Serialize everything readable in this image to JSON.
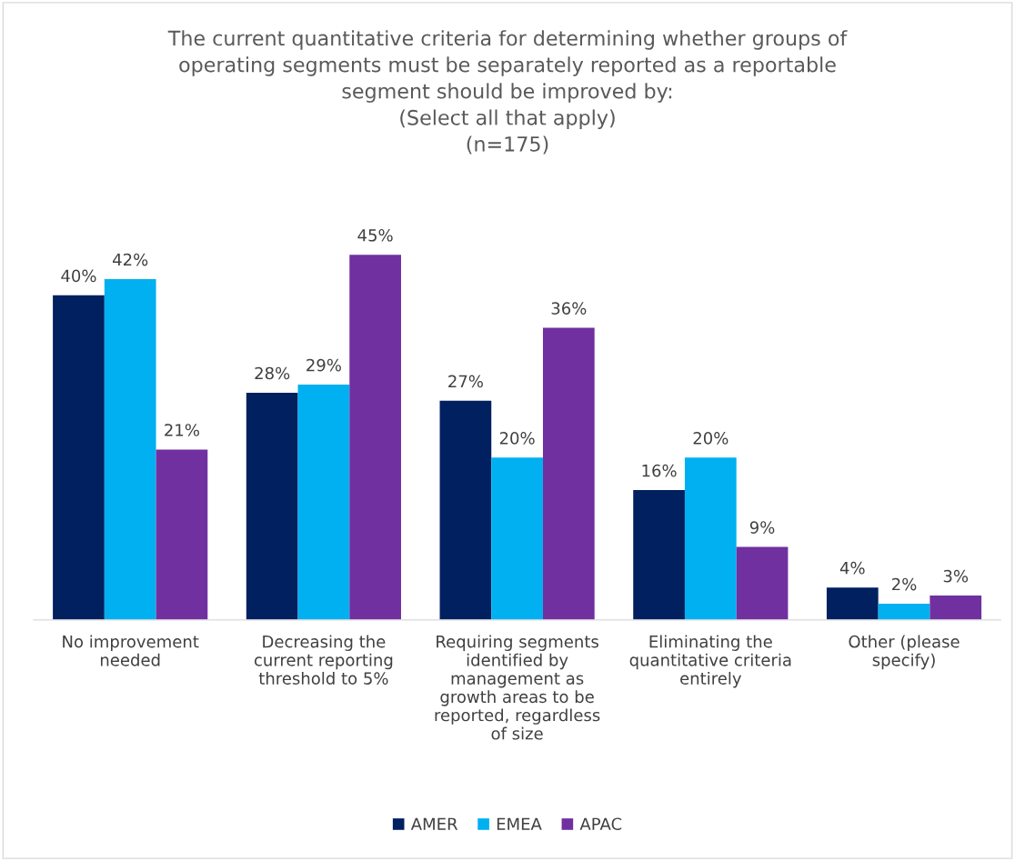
{
  "chart_data": {
    "type": "bar",
    "title": "The current quantitative criteria for determining whether groups of\noperating segments must be separately reported as a reportable\nsegment should be improved by:\n(Select all that apply)\n(n=175)",
    "categories": [
      "No improvement\nneeded",
      "Decreasing the\ncurrent reporting\nthreshold to 5%",
      "Requiring segments\nidentified by\nmanagement as\ngrowth areas to be\nreported, regardless\nof size",
      "Eliminating the\nquantitative criteria\nentirely",
      "Other (please\nspecify)"
    ],
    "series": [
      {
        "name": "AMER",
        "color": "#002060",
        "values": [
          40,
          28,
          27,
          16,
          4
        ],
        "value_labels": [
          "40%",
          "28%",
          "27%",
          "16%",
          "4%"
        ]
      },
      {
        "name": "EMEA",
        "color": "#00b0f0",
        "values": [
          42,
          29,
          20,
          20,
          2
        ],
        "value_labels": [
          "42%",
          "29%",
          "20%",
          "20%",
          "2%"
        ]
      },
      {
        "name": "APAC",
        "color": "#7030a0",
        "values": [
          21,
          45,
          36,
          9,
          3
        ],
        "value_labels": [
          "21%",
          "45%",
          "36%",
          "9%",
          "3%"
        ]
      }
    ],
    "legend": "bottom"
  }
}
